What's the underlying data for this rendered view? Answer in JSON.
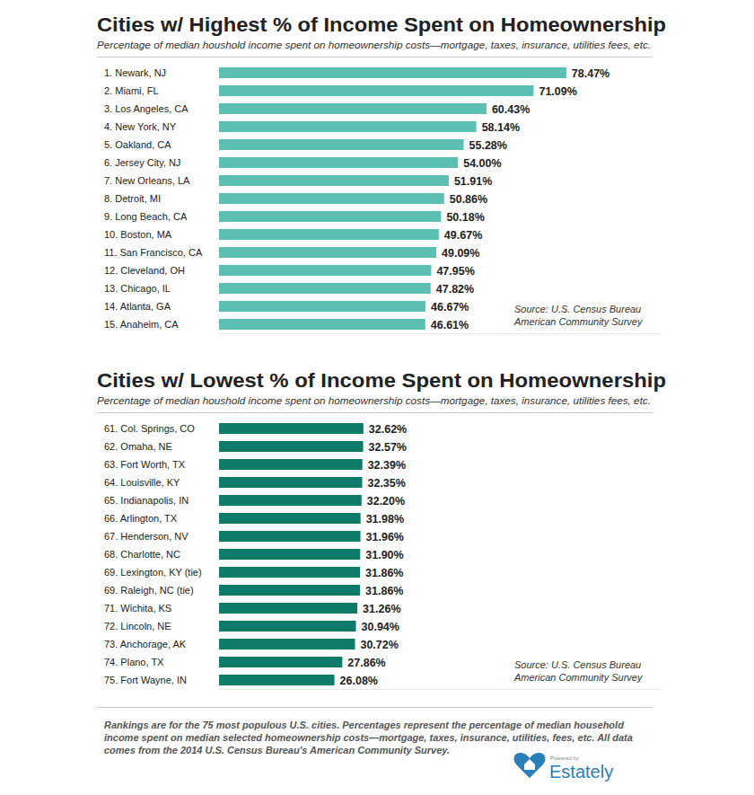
{
  "chart_data": [
    {
      "type": "bar",
      "orientation": "horizontal",
      "title": "Cities w/ Highest % of Income Spent on Homeownership",
      "subtitle": "Percentage of median houshold income spent on homeownership costs—mortgage, taxes, insurance, utilities fees, etc.",
      "categories": [
        "1. Newark, NJ",
        "2. Miami, FL",
        "3. Los Angeles, CA",
        "4. New York, NY",
        "5. Oakland, CA",
        "6. Jersey City, NJ",
        "7. New Orleans, LA",
        "8. Detroit, MI",
        "9. Long Beach, CA",
        "10. Boston, MA",
        "11. San Francisco, CA",
        "12. Cleveland, OH",
        "13. Chicago, IL",
        "14. Atlanta, GA",
        "15. Anaheim, CA"
      ],
      "values": [
        78.47,
        71.09,
        60.43,
        58.14,
        55.28,
        54.0,
        51.91,
        50.86,
        50.18,
        49.67,
        49.09,
        47.95,
        47.82,
        46.67,
        46.61
      ],
      "value_labels": [
        "78.47%",
        "71.09%",
        "60.43%",
        "58.14%",
        "55.28%",
        "54.00%",
        "51.91%",
        "50.86%",
        "50.18%",
        "49.67%",
        "49.09%",
        "47.95%",
        "47.82%",
        "46.67%",
        "46.61%"
      ],
      "color": "#5cbfb1",
      "xlim": [
        0,
        100
      ],
      "data_labels": true,
      "tick_labels": "y",
      "grid": false,
      "annotations": [
        "Source:  U.S. Census Bureau",
        "American Community Survey"
      ]
    },
    {
      "type": "bar",
      "orientation": "horizontal",
      "title": "Cities w/ Lowest % of Income Spent on Homeownership",
      "subtitle": "Percentage of median houshold income spent on homeownership costs—mortgage, taxes, insurance, utilities fees, etc.",
      "categories": [
        "61. Col. Springs, CO",
        "62. Omaha, NE",
        "63. Fort Worth, TX",
        "64. Louisville, KY",
        "65. Indianapolis, IN",
        "66. Arlington, TX",
        "67. Henderson, NV",
        "68. Charlotte, NC",
        "69. Lexington, KY (tie)",
        "69. Raleigh, NC (tie)",
        "71. Wichita, KS",
        "72. Lincoln, NE",
        "73. Anchorage, AK",
        "74. Plano, TX",
        "75. Fort Wayne, IN"
      ],
      "values": [
        32.62,
        32.57,
        32.39,
        32.35,
        32.2,
        31.98,
        31.96,
        31.9,
        31.86,
        31.86,
        31.26,
        30.94,
        30.72,
        27.86,
        26.08
      ],
      "value_labels": [
        "32.62%",
        "32.57%",
        "32.39%",
        "32.35%",
        "32.20%",
        "31.98%",
        "31.96%",
        "31.90%",
        "31.86%",
        "31.86%",
        "31.26%",
        "30.94%",
        "30.72%",
        "27.86%",
        "26.08%"
      ],
      "color": "#0e7b69",
      "xlim": [
        0,
        100
      ],
      "data_labels": true,
      "tick_labels": "y",
      "grid": false,
      "annotations": [
        "Source:  U.S. Census Bureau",
        "American Community Survey"
      ]
    }
  ],
  "footnote": "Rankings are for the 75 most populous U.S. cities. Percentages represent the percentage of median household income spent on median selected homeownership costs—mortgage, taxes, insurance, utilities, fees, etc. All data comes from the 2014 U.S. Census Bureau's American Community Survey.",
  "logo": {
    "powered_by": "Powered by",
    "name": "Estately"
  }
}
